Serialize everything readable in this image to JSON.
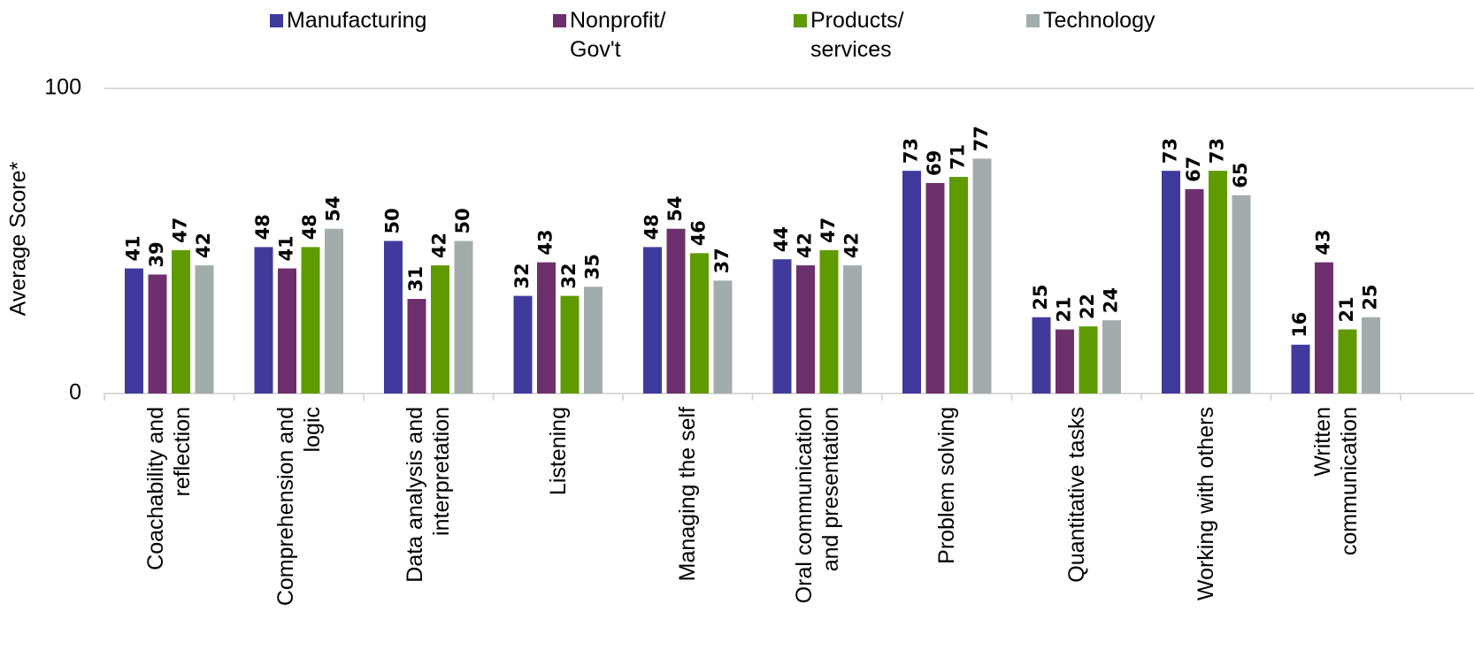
{
  "chart_data": {
    "type": "bar",
    "ylabel": "Average Score*",
    "categories": [
      "Coachability and reflection",
      "Comprehension and logic",
      "Data analysis and interpretation",
      "Listening",
      "Managing the self",
      "Oral communication and presentation",
      "Problem solving",
      "Quantitative tasks",
      "Working with others",
      "Written communication"
    ],
    "series": [
      {
        "name": "Manufacturing",
        "color": "#3f3a9c",
        "values": [
          41,
          48,
          50,
          32,
          48,
          44,
          73,
          25,
          73,
          16
        ]
      },
      {
        "name": "Nonprofit/ Gov't",
        "color": "#6d2f6e",
        "values": [
          39,
          41,
          31,
          43,
          54,
          42,
          69,
          21,
          67,
          43
        ]
      },
      {
        "name": "Products/ services",
        "color": "#5f9b00",
        "values": [
          47,
          48,
          42,
          32,
          46,
          47,
          71,
          22,
          73,
          21
        ]
      },
      {
        "name": "Technology",
        "color": "#a3acac",
        "values": [
          42,
          54,
          50,
          35,
          37,
          42,
          77,
          24,
          65,
          25
        ]
      }
    ],
    "ylim": [
      0,
      100
    ],
    "yticks": [
      0,
      100
    ],
    "grid": true
  }
}
